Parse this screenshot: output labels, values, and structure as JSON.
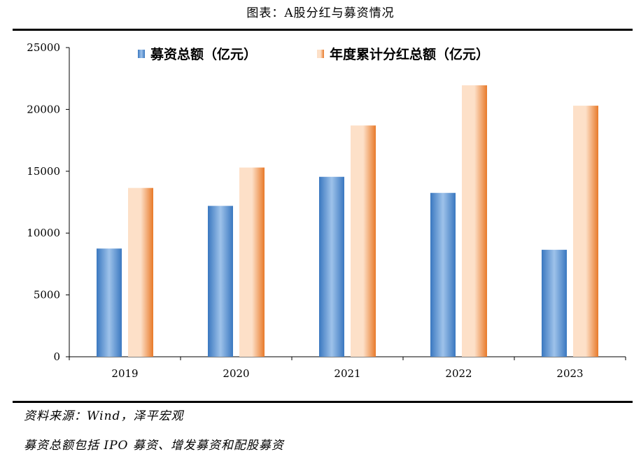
{
  "title": "图表：A股分红与募资情况",
  "notes": {
    "source": "资料来源：Wind，泽平宏观",
    "description": "募资总额包括 IPO 募资、增发募资和配股募资"
  },
  "colors": {
    "series1_dark": "#3a78c0",
    "series1_light": "#9ec2ea",
    "series2_dark": "#e87a2a",
    "series2_light": "#fde0c8"
  },
  "chart_data": {
    "type": "bar",
    "categories": [
      "2019",
      "2020",
      "2021",
      "2022",
      "2023"
    ],
    "series": [
      {
        "name": "募资总额（亿元）",
        "values": [
          8750,
          12200,
          14550,
          13250,
          8650
        ]
      },
      {
        "name": "年度累计分红总额（亿元）",
        "values": [
          13650,
          15300,
          18700,
          21950,
          20300
        ]
      }
    ],
    "yticks": [
      "0",
      "5000",
      "10000",
      "15000",
      "20000",
      "25000"
    ],
    "ylim": [
      0,
      25000
    ],
    "legend": "top",
    "grid": false
  }
}
